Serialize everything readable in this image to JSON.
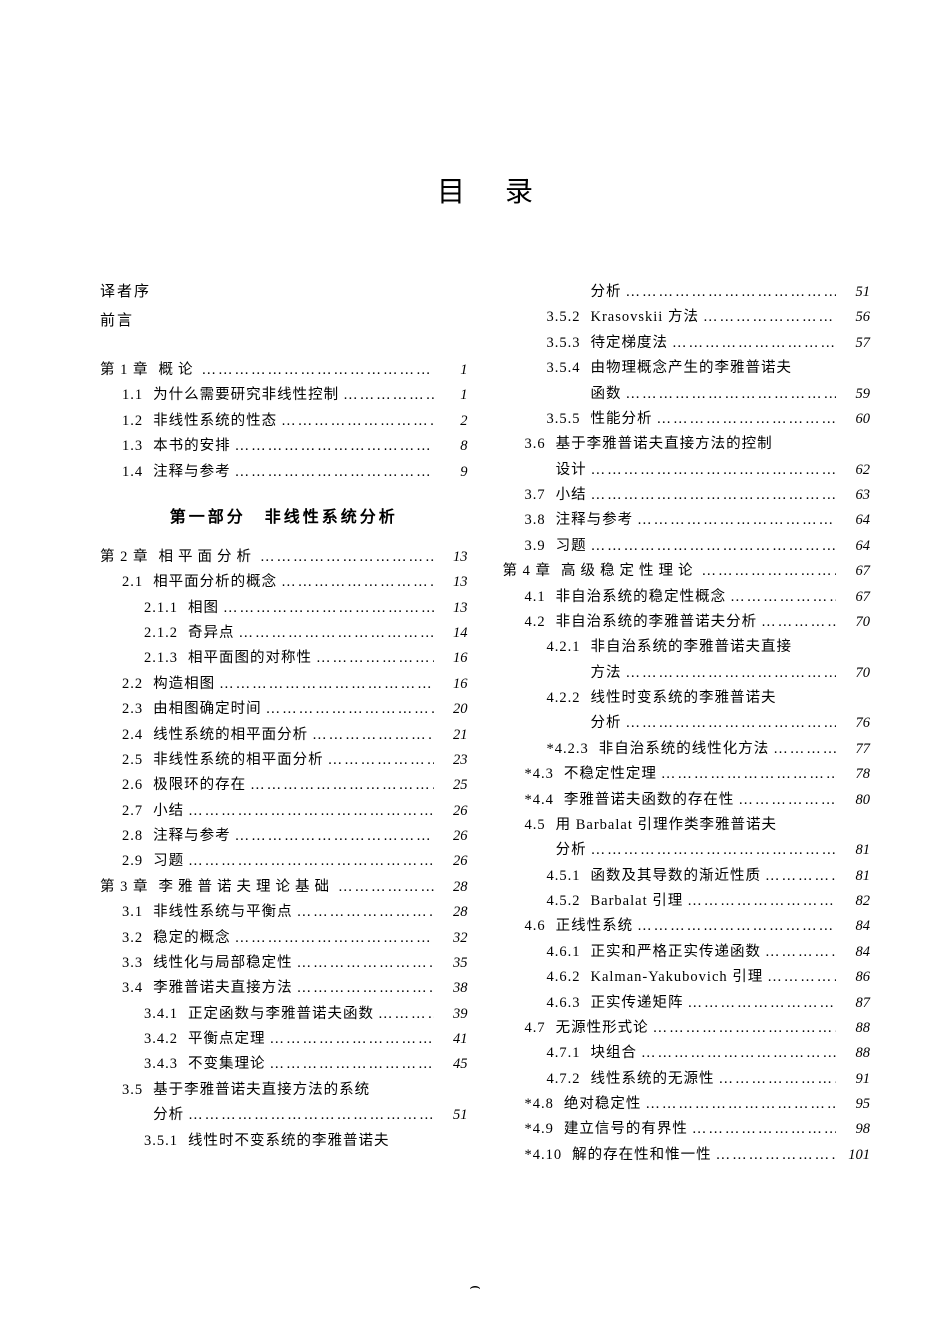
{
  "title": "目录",
  "prelims": [
    "译者序",
    "前言"
  ],
  "part_title": "第一部分　非线性系统分析",
  "left": [
    {
      "lvl": 0,
      "num": "第 1 章",
      "label": "概论",
      "page": "1",
      "spaced": true
    },
    {
      "lvl": 1,
      "num": "1.1",
      "label": "为什么需要研究非线性控制",
      "page": "1"
    },
    {
      "lvl": 1,
      "num": "1.2",
      "label": "非线性系统的性态",
      "page": "2"
    },
    {
      "lvl": 1,
      "num": "1.3",
      "label": "本书的安排",
      "page": "8"
    },
    {
      "lvl": 1,
      "num": "1.4",
      "label": "注释与参考",
      "page": "9"
    },
    {
      "type": "part"
    },
    {
      "lvl": 0,
      "num": "第 2 章",
      "label": "相平面分析",
      "page": "13",
      "spaced": true
    },
    {
      "lvl": 1,
      "num": "2.1",
      "label": "相平面分析的概念",
      "page": "13"
    },
    {
      "lvl": 2,
      "num": "2.1.1",
      "label": "相图",
      "page": "13"
    },
    {
      "lvl": 2,
      "num": "2.1.2",
      "label": "奇异点",
      "page": "14"
    },
    {
      "lvl": 2,
      "num": "2.1.3",
      "label": "相平面图的对称性",
      "page": "16"
    },
    {
      "lvl": 1,
      "num": "2.2",
      "label": "构造相图",
      "page": "16"
    },
    {
      "lvl": 1,
      "num": "2.3",
      "label": "由相图确定时间",
      "page": "20"
    },
    {
      "lvl": 1,
      "num": "2.4",
      "label": "线性系统的相平面分析",
      "page": "21"
    },
    {
      "lvl": 1,
      "num": "2.5",
      "label": "非线性系统的相平面分析",
      "page": "23"
    },
    {
      "lvl": 1,
      "num": "2.6",
      "label": "极限环的存在",
      "page": "25"
    },
    {
      "lvl": 1,
      "num": "2.7",
      "label": "小结",
      "page": "26"
    },
    {
      "lvl": 1,
      "num": "2.8",
      "label": "注释与参考",
      "page": "26"
    },
    {
      "lvl": 1,
      "num": "2.9",
      "label": "习题",
      "page": "26"
    },
    {
      "lvl": 0,
      "num": "第 3 章",
      "label": "李雅普诺夫理论基础",
      "page": "28",
      "spaced": true
    },
    {
      "lvl": 1,
      "num": "3.1",
      "label": "非线性系统与平衡点",
      "page": "28"
    },
    {
      "lvl": 1,
      "num": "3.2",
      "label": "稳定的概念",
      "page": "32"
    },
    {
      "lvl": 1,
      "num": "3.3",
      "label": "线性化与局部稳定性",
      "page": "35"
    },
    {
      "lvl": 1,
      "num": "3.4",
      "label": "李雅普诺夫直接方法",
      "page": "38"
    },
    {
      "lvl": 2,
      "num": "3.4.1",
      "label": "正定函数与李雅普诺夫函数",
      "page": "39"
    },
    {
      "lvl": 2,
      "num": "3.4.2",
      "label": "平衡点定理",
      "page": "41"
    },
    {
      "lvl": 2,
      "num": "3.4.3",
      "label": "不变集理论",
      "page": "45"
    },
    {
      "lvl": 1,
      "num": "3.5",
      "label": "基于李雅普诺夫直接方法的系统",
      "noleader": true
    },
    {
      "lvl": 1,
      "num": "3.5",
      "label": "分析",
      "page": "51",
      "cont": true
    },
    {
      "lvl": 2,
      "num": "3.5.1",
      "label": "线性时不变系统的李雅普诺夫",
      "noleader": true
    }
  ],
  "right": [
    {
      "lvl": 2,
      "num": "3.5.1",
      "label": "分析",
      "page": "51",
      "cont": true
    },
    {
      "lvl": 2,
      "num": "3.5.2",
      "label": "Krasovskii 方法",
      "page": "56"
    },
    {
      "lvl": 2,
      "num": "3.5.3",
      "label": "待定梯度法",
      "page": "57"
    },
    {
      "lvl": 2,
      "num": "3.5.4",
      "label": "由物理概念产生的李雅普诺夫",
      "noleader": true
    },
    {
      "lvl": 2,
      "num": "3.5.4",
      "label": "函数",
      "page": "59",
      "cont": true
    },
    {
      "lvl": 2,
      "num": "3.5.5",
      "label": "性能分析",
      "page": "60"
    },
    {
      "lvl": 1,
      "num": "3.6",
      "label": "基于李雅普诺夫直接方法的控制",
      "noleader": true
    },
    {
      "lvl": 1,
      "num": "3.6",
      "label": "设计",
      "page": "62",
      "cont": true
    },
    {
      "lvl": 1,
      "num": "3.7",
      "label": "小结",
      "page": "63"
    },
    {
      "lvl": 1,
      "num": "3.8",
      "label": "注释与参考",
      "page": "64"
    },
    {
      "lvl": 1,
      "num": "3.9",
      "label": "习题",
      "page": "64"
    },
    {
      "lvl": 0,
      "num": "第 4 章",
      "label": "高级稳定性理论",
      "page": "67",
      "spaced": true
    },
    {
      "lvl": 1,
      "num": "4.1",
      "label": "非自治系统的稳定性概念",
      "page": "67"
    },
    {
      "lvl": 1,
      "num": "4.2",
      "label": "非自治系统的李雅普诺夫分析",
      "page": "70"
    },
    {
      "lvl": 2,
      "num": "4.2.1",
      "label": "非自治系统的李雅普诺夫直接",
      "noleader": true
    },
    {
      "lvl": 2,
      "num": "4.2.1",
      "label": "方法",
      "page": "70",
      "cont": true
    },
    {
      "lvl": 2,
      "num": "4.2.2",
      "label": "线性时变系统的李雅普诺夫",
      "noleader": true
    },
    {
      "lvl": 2,
      "num": "4.2.2",
      "label": "分析",
      "page": "76",
      "cont": true
    },
    {
      "lvl": 2,
      "num": "*4.2.3",
      "label": "非自治系统的线性化方法",
      "page": "77"
    },
    {
      "lvl": 1,
      "num": "*4.3",
      "label": "不稳定性定理",
      "page": "78"
    },
    {
      "lvl": 1,
      "num": "*4.4",
      "label": "李雅普诺夫函数的存在性",
      "page": "80"
    },
    {
      "lvl": 1,
      "num": "4.5",
      "label": "用 Barbalat 引理作类李雅普诺夫",
      "noleader": true
    },
    {
      "lvl": 1,
      "num": "4.5",
      "label": "分析",
      "page": "81",
      "cont": true
    },
    {
      "lvl": 2,
      "num": "4.5.1",
      "label": "函数及其导数的渐近性质",
      "page": "81"
    },
    {
      "lvl": 2,
      "num": "4.5.2",
      "label": "Barbalat 引理",
      "page": "82"
    },
    {
      "lvl": 1,
      "num": "4.6",
      "label": "正线性系统",
      "page": "84"
    },
    {
      "lvl": 2,
      "num": "4.6.1",
      "label": "正实和严格正实传递函数",
      "page": "84"
    },
    {
      "lvl": 2,
      "num": "4.6.2",
      "label": "Kalman-Yakubovich 引理",
      "page": "86"
    },
    {
      "lvl": 2,
      "num": "4.6.3",
      "label": "正实传递矩阵",
      "page": "87"
    },
    {
      "lvl": 1,
      "num": "4.7",
      "label": "无源性形式论",
      "page": "88"
    },
    {
      "lvl": 2,
      "num": "4.7.1",
      "label": "块组合",
      "page": "88"
    },
    {
      "lvl": 2,
      "num": "4.7.2",
      "label": "线性系统的无源性",
      "page": "91"
    },
    {
      "lvl": 1,
      "num": "*4.8",
      "label": "绝对稳定性",
      "page": "95"
    },
    {
      "lvl": 1,
      "num": "*4.9",
      "label": "建立信号的有界性",
      "page": "98"
    },
    {
      "lvl": 1,
      "num": "*4.10",
      "label": "解的存在性和惟一性",
      "page": "101"
    }
  ],
  "foot": "⌢"
}
